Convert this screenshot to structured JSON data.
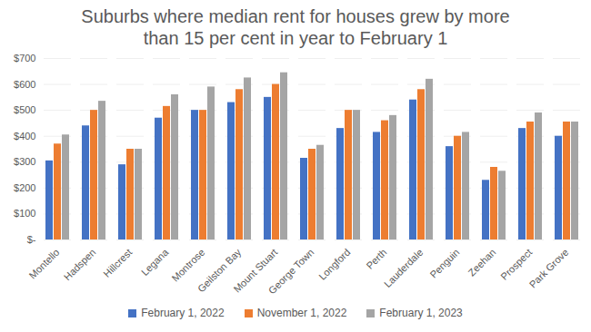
{
  "chart_data": {
    "type": "bar",
    "title": "Suburbs where median rent for houses grew by more than 15 per cent in year to February 1",
    "categories": [
      "Montello",
      "Hadspen",
      "Hillcrest",
      "Legana",
      "Montrose",
      "Geilston Bay",
      "Mount Stuart",
      "George Town",
      "Longford",
      "Perth",
      "Lauderdale",
      "Penguin",
      "Zeehan",
      "Prospect",
      "Park Grove"
    ],
    "series": [
      {
        "name": "February 1, 2022",
        "color": "#4472c4",
        "values": [
          305,
          440,
          290,
          470,
          500,
          530,
          550,
          315,
          430,
          415,
          540,
          360,
          230,
          430,
          400
        ]
      },
      {
        "name": "November 1, 2022",
        "color": "#ed7d31",
        "values": [
          370,
          500,
          350,
          515,
          500,
          580,
          600,
          350,
          500,
          460,
          580,
          400,
          280,
          455,
          455
        ]
      },
      {
        "name": "February 1, 2023",
        "color": "#a5a5a5",
        "values": [
          405,
          535,
          350,
          560,
          590,
          625,
          645,
          365,
          500,
          480,
          620,
          415,
          265,
          490,
          455
        ]
      }
    ],
    "ylim": [
      0,
      700
    ],
    "yticks": [
      {
        "value": 0,
        "label": "$-"
      },
      {
        "value": 100,
        "label": "$100"
      },
      {
        "value": 200,
        "label": "$200"
      },
      {
        "value": 300,
        "label": "$300"
      },
      {
        "value": 400,
        "label": "$400"
      },
      {
        "value": 500,
        "label": "$500"
      },
      {
        "value": 600,
        "label": "$600"
      },
      {
        "value": 700,
        "label": "$700"
      }
    ],
    "grid": true,
    "legend": "bottom"
  }
}
